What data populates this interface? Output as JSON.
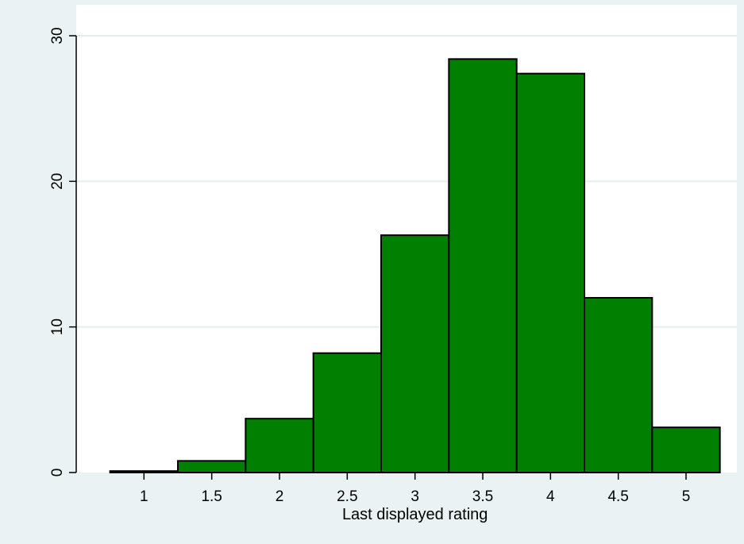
{
  "chart_data": {
    "type": "bar",
    "title": "",
    "xlabel": "Last displayed rating",
    "ylabel": "",
    "xlim": [
      0.5,
      5.375
    ],
    "ylim": [
      0,
      30
    ],
    "grid": true,
    "colors": {
      "bar_fill": "#007f00",
      "bar_stroke": "#000000",
      "plot_bg": "#ffffff",
      "outer_bg": "#eaf2f3",
      "gridline": "#e4eef0",
      "axis": "#000000"
    },
    "bin_width": 0.5,
    "bins": [
      {
        "center": 1.0,
        "value": 0.1
      },
      {
        "center": 1.5,
        "value": 0.8
      },
      {
        "center": 2.0,
        "value": 3.7
      },
      {
        "center": 2.5,
        "value": 8.2
      },
      {
        "center": 3.0,
        "value": 16.3
      },
      {
        "center": 3.5,
        "value": 28.4
      },
      {
        "center": 4.0,
        "value": 27.4
      },
      {
        "center": 4.5,
        "value": 12.0
      },
      {
        "center": 5.0,
        "value": 3.1
      }
    ],
    "xticks": [
      "1",
      "1.5",
      "2",
      "2.5",
      "3",
      "3.5",
      "4",
      "4.5",
      "5"
    ],
    "xtick_values": [
      1,
      1.5,
      2,
      2.5,
      3,
      3.5,
      4,
      4.5,
      5
    ],
    "yticks": [
      "0",
      "10",
      "20",
      "30"
    ],
    "ytick_values": [
      0,
      10,
      20,
      30
    ]
  }
}
